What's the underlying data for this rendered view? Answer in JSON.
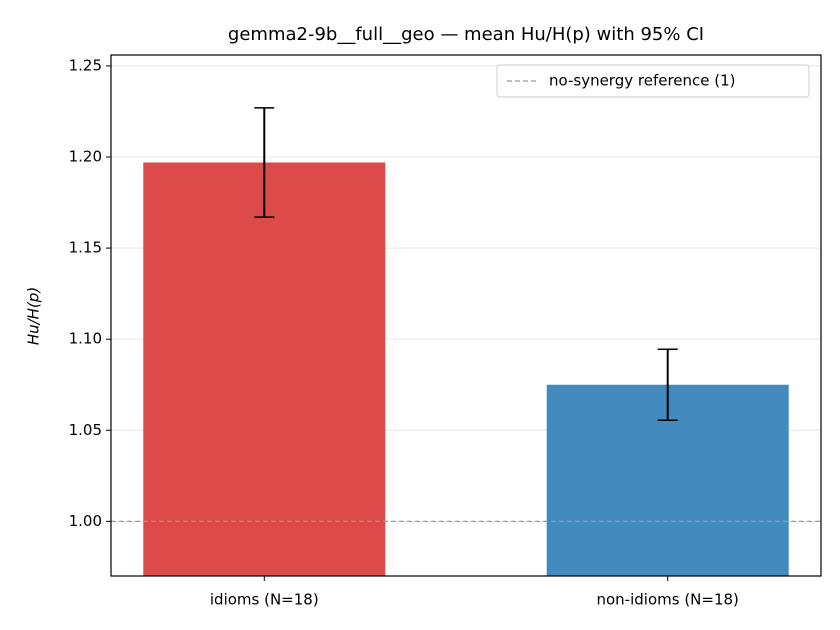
{
  "chart_data": {
    "type": "bar",
    "title": "gemma2-9b__full__geo — mean Hu/H(p) with 95% CI",
    "y_label": "Hu/H(p)",
    "categories": [
      "idioms (N=18)",
      "non-idioms (N=18)"
    ],
    "series": [
      {
        "name": "mean",
        "values": [
          1.197,
          1.075
        ],
        "errors": [
          0.03,
          0.0195
        ],
        "colors": [
          "#dc4a4a",
          "#438bbf"
        ]
      }
    ],
    "ylim": [
      0.97,
      1.256
    ],
    "yticks": [
      {
        "value": 1.0,
        "label": "1.00"
      },
      1.05,
      {
        "value": 1.1,
        "label": "1.10"
      },
      1.15,
      {
        "value": 1.2,
        "label": "1.20"
      },
      1.25
    ],
    "grid": true,
    "reference_line": {
      "value": 1,
      "label": "no-synergy reference (1)",
      "color": "#999999"
    },
    "legend_position": "upper-right"
  }
}
